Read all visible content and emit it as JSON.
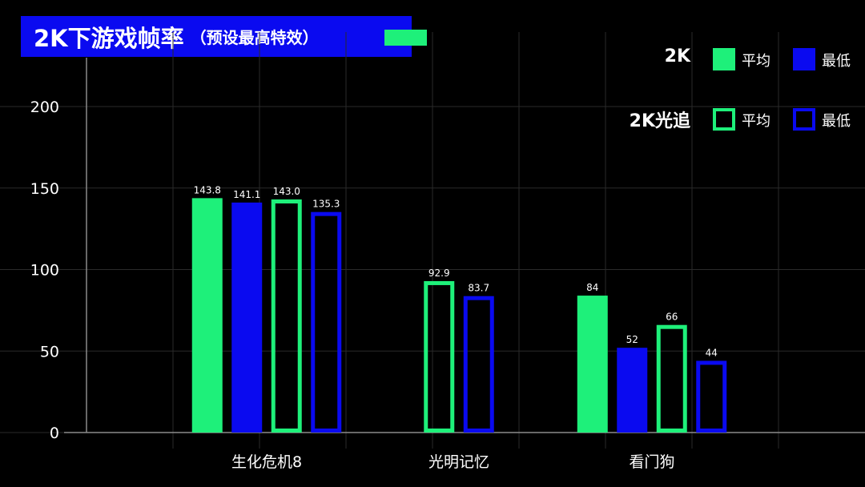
{
  "title": {
    "main": "2K下游戏帧率",
    "sub": "（预设最高特效）"
  },
  "legend": {
    "groups": [
      {
        "label": "2K",
        "items": [
          {
            "label": "平均",
            "color": "#1ef07a",
            "style": "filled"
          },
          {
            "label": "最低",
            "color": "#0a0af0",
            "style": "filled"
          }
        ]
      },
      {
        "label": "2K光追",
        "items": [
          {
            "label": "平均",
            "color": "#1ef07a",
            "style": "outline"
          },
          {
            "label": "最低",
            "color": "#0a0af0",
            "style": "outline"
          }
        ]
      }
    ]
  },
  "chart_data": {
    "type": "bar",
    "title": "2K下游戏帧率（预设最高特效）",
    "categories": [
      "生化危机8",
      "光明记忆",
      "看门狗"
    ],
    "ylim": [
      0,
      200
    ],
    "yticks": [
      0,
      50,
      100,
      150,
      200
    ],
    "grid": true,
    "legend_position": "top-right",
    "series": [
      {
        "name": "2K 平均",
        "color": "#1ef07a",
        "style": "filled",
        "values": [
          143.8,
          null,
          84
        ],
        "labels": [
          "143.8",
          "",
          "84"
        ]
      },
      {
        "name": "2K 最低",
        "color": "#0a0af0",
        "style": "filled",
        "values": [
          141.1,
          null,
          52
        ],
        "labels": [
          "141.1",
          "",
          "52"
        ]
      },
      {
        "name": "2K光追 平均",
        "color": "#1ef07a",
        "style": "outline",
        "values": [
          143.0,
          92.9,
          66
        ],
        "labels": [
          "143.0",
          "92.9",
          "66"
        ]
      },
      {
        "name": "2K光追 最低",
        "color": "#0a0af0",
        "style": "outline",
        "values": [
          135.3,
          83.7,
          44
        ],
        "labels": [
          "135.3",
          "83.7",
          "44"
        ]
      }
    ],
    "display_heights": {
      "note_removed": true
    }
  }
}
